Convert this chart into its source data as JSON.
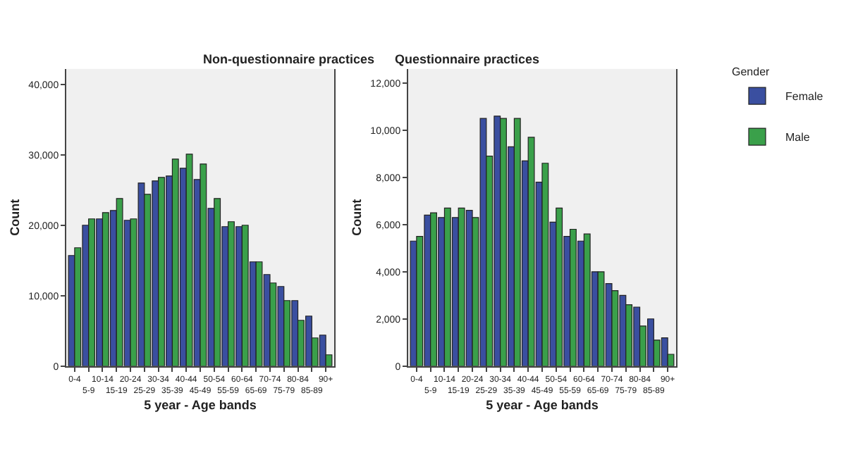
{
  "chart_data": [
    {
      "type": "bar",
      "title": "Non-questionnaire practices",
      "xlabel": "5 year - Age bands",
      "ylabel": "Count",
      "categories": [
        "0-4",
        "5-9",
        "10-14",
        "15-19",
        "20-24",
        "25-29",
        "30-34",
        "35-39",
        "40-44",
        "45-49",
        "50-54",
        "55-59",
        "60-64",
        "65-69",
        "70-74",
        "75-79",
        "80-84",
        "85-89",
        "90+"
      ],
      "series": [
        {
          "color": "#3a4fa0",
          "values": [
            15700,
            20000,
            20900,
            22100,
            20700,
            26000,
            26300,
            27000,
            28100,
            26500,
            22400,
            19800,
            19800,
            14800,
            13000,
            11300,
            9300,
            7100,
            4400
          ]
        },
        {
          "color": "#3aa04a",
          "values": [
            16800,
            20900,
            21800,
            23800,
            20900,
            24400,
            26800,
            29400,
            30100,
            28700,
            23800,
            20500,
            20000,
            14800,
            11800,
            9300,
            6500,
            4000,
            1600
          ]
        }
      ],
      "ylim": [
        0,
        42200
      ],
      "yticks": [
        0,
        {
          "value": 10000,
          "label": "10,000"
        },
        {
          "value": 20000,
          "label": "20,000"
        },
        {
          "value": 30000,
          "label": "30,000"
        },
        {
          "value": 40000,
          "label": "40,000"
        }
      ],
      "grid": false,
      "legend": false
    },
    {
      "type": "bar",
      "title": "Questionnaire practices",
      "xlabel": "5 year - Age bands",
      "ylabel": "Count",
      "legend_title": "Gender",
      "categories": [
        "0-4",
        "5-9",
        "10-14",
        "15-19",
        "20-24",
        "25-29",
        "30-34",
        "35-39",
        "40-44",
        "45-49",
        "50-54",
        "55-59",
        "60-64",
        "65-69",
        "70-74",
        "75-79",
        "80-84",
        "85-89",
        "90+"
      ],
      "series": [
        {
          "name": "Female",
          "color": "#3a4fa0",
          "values": [
            5300,
            6400,
            6300,
            6300,
            6600,
            10500,
            10600,
            9300,
            8700,
            7800,
            6100,
            5500,
            5300,
            4000,
            3500,
            3000,
            2500,
            2000,
            1200
          ]
        },
        {
          "name": "Male",
          "color": "#3aa04a",
          "values": [
            5500,
            6500,
            6700,
            6700,
            6300,
            8900,
            10500,
            10500,
            9700,
            8600,
            6700,
            5800,
            5600,
            4000,
            3200,
            2600,
            1700,
            1100,
            500
          ]
        }
      ],
      "ylim": [
        0,
        12600
      ],
      "yticks": [
        0,
        {
          "value": 2000,
          "label": "2,000"
        },
        {
          "value": 4000,
          "label": "4,000"
        },
        {
          "value": 6000,
          "label": "6,000"
        },
        {
          "value": 8000,
          "label": "8,000"
        },
        {
          "value": 10000,
          "label": "10,000"
        },
        {
          "value": 12000,
          "label": "12,000"
        }
      ],
      "grid": false,
      "legend": "right"
    }
  ]
}
